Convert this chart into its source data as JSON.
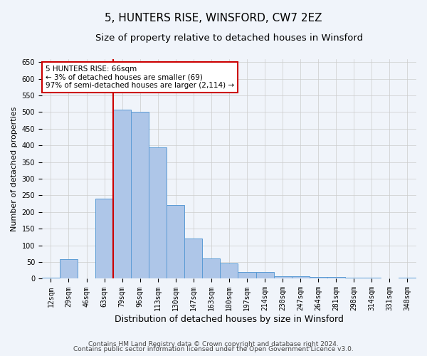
{
  "title": "5, HUNTERS RISE, WINSFORD, CW7 2EZ",
  "subtitle": "Size of property relative to detached houses in Winsford",
  "xlabel": "Distribution of detached houses by size in Winsford",
  "ylabel": "Number of detached properties",
  "footer1": "Contains HM Land Registry data © Crown copyright and database right 2024.",
  "footer2": "Contains public sector information licensed under the Open Government Licence v3.0.",
  "bin_labels": [
    "12sqm",
    "29sqm",
    "46sqm",
    "63sqm",
    "79sqm",
    "96sqm",
    "113sqm",
    "130sqm",
    "147sqm",
    "163sqm",
    "180sqm",
    "197sqm",
    "214sqm",
    "230sqm",
    "247sqm",
    "264sqm",
    "281sqm",
    "298sqm",
    "314sqm",
    "331sqm",
    "348sqm"
  ],
  "bar_values": [
    3,
    58,
    0,
    240,
    508,
    500,
    393,
    222,
    120,
    60,
    45,
    20,
    20,
    8,
    8,
    5,
    5,
    3,
    3,
    0,
    3
  ],
  "bar_color": "#aec6e8",
  "bar_edge_color": "#5b9bd5",
  "property_line_label": "5 HUNTERS RISE: 66sqm",
  "annotation_line1": "← 3% of detached houses are smaller (69)",
  "annotation_line2": "97% of semi-detached houses are larger (2,114) →",
  "ylim": [
    0,
    660
  ],
  "yticks": [
    0,
    50,
    100,
    150,
    200,
    250,
    300,
    350,
    400,
    450,
    500,
    550,
    600,
    650
  ],
  "annotation_box_color": "#ffffff",
  "annotation_box_edge": "#cc0000",
  "vline_color": "#cc0000",
  "vline_x": 3.5,
  "grid_color": "#cccccc",
  "title_fontsize": 11,
  "subtitle_fontsize": 9.5,
  "xlabel_fontsize": 9,
  "ylabel_fontsize": 8,
  "tick_fontsize": 7,
  "annotation_fontsize": 7.5,
  "footer_fontsize": 6.5,
  "bg_color": "#f0f4fa"
}
